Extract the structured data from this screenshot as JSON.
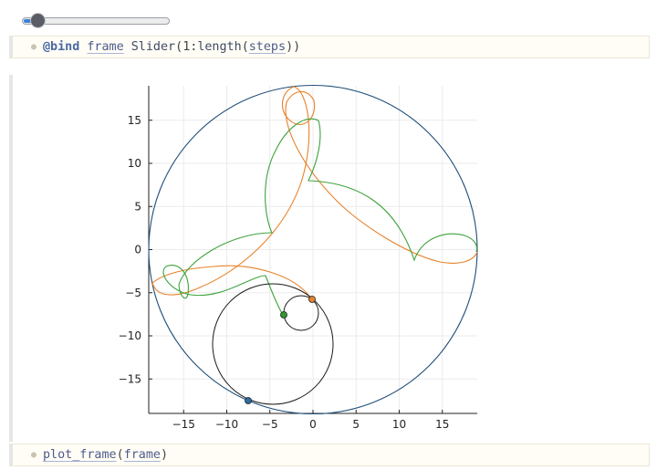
{
  "slider": {
    "value_fraction": 0.1
  },
  "cell1": {
    "kw": "@bind",
    "var_frame": "frame",
    "fn_slider": "Slider",
    "p1": "(",
    "range": "1:",
    "fn_length": "length",
    "p2": "(",
    "var_steps": "steps",
    "p3": "))"
  },
  "cell2": {
    "fn": "plot_frame",
    "p1": "(",
    "var_frame": "frame",
    "p2": ")"
  },
  "plot": {
    "xticks": [
      "−15",
      "−10",
      "−5",
      "0",
      "5",
      "10",
      "15"
    ],
    "yticks": [
      "15",
      "10",
      "5",
      "0",
      "−5",
      "−10",
      "−15"
    ],
    "colors": {
      "outer_circle": "#1f4e79",
      "orange_path": "#e8822a",
      "green_path": "#3da33d",
      "small_circles": "#1a1a1a",
      "blue_point": "#2b6ca3",
      "green_point": "#2e9a2e",
      "orange_point": "#e8822a"
    }
  }
}
